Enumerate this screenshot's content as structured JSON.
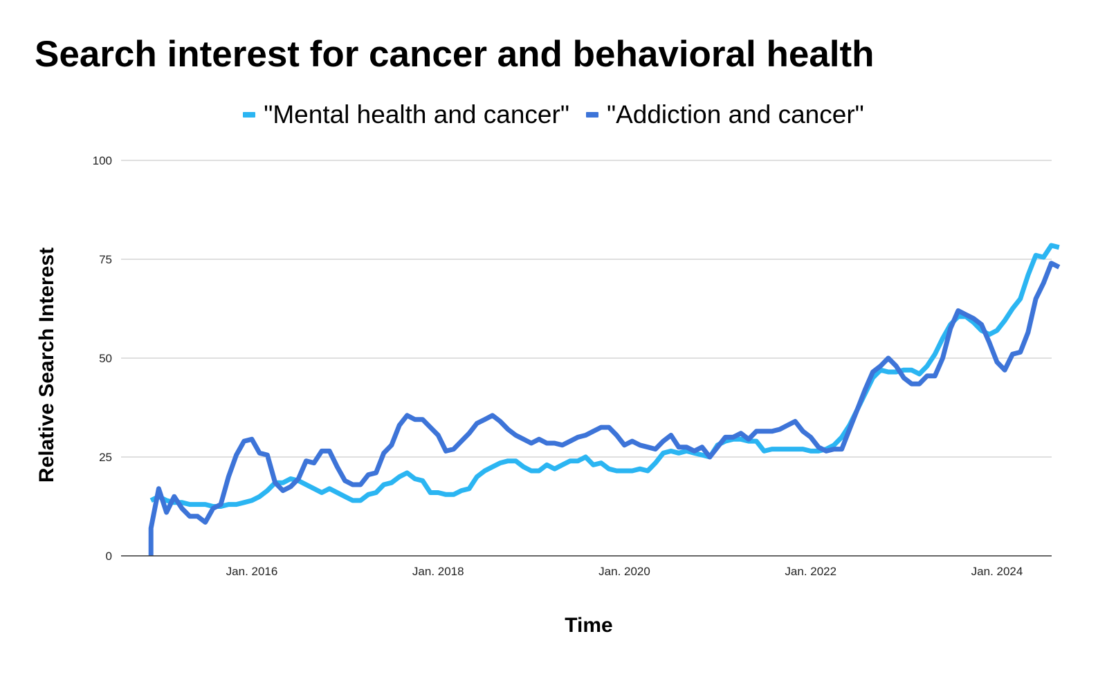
{
  "chart_data": {
    "type": "line",
    "title": "Search interest for cancer and behavioral health",
    "xlabel": "Time",
    "ylabel": "Relative Search Interest",
    "ylim": [
      0,
      100
    ],
    "y_ticks": [
      "0",
      "25",
      "50",
      "75",
      "100"
    ],
    "x_ticks": [
      {
        "label": "Jan. 2016",
        "date": "2016-01"
      },
      {
        "label": "Jan. 2018",
        "date": "2018-01"
      },
      {
        "label": "Jan. 2020",
        "date": "2020-01"
      },
      {
        "label": "Jan. 2022",
        "date": "2022-01"
      },
      {
        "label": "Jan. 2024",
        "date": "2024-01"
      }
    ],
    "x_range": [
      "2014-12",
      "2025-01"
    ],
    "grid": true,
    "legend_position": "top",
    "colors": {
      "series1": "#2bb5f2",
      "series2": "#3d74d8",
      "grid": "#cccccc",
      "axis": "#333333"
    },
    "series": [
      {
        "name": "\"Mental health and cancer\"",
        "points": [
          [
            "2014-12",
            14
          ],
          [
            "2015-01",
            15
          ],
          [
            "2015-02",
            14
          ],
          [
            "2015-03",
            13.5
          ],
          [
            "2015-04",
            13.5
          ],
          [
            "2015-05",
            13
          ],
          [
            "2015-06",
            13
          ],
          [
            "2015-07",
            13
          ],
          [
            "2015-08",
            12.5
          ],
          [
            "2015-09",
            12.5
          ],
          [
            "2015-10",
            13
          ],
          [
            "2015-11",
            13
          ],
          [
            "2015-12",
            13.5
          ],
          [
            "2016-01",
            14
          ],
          [
            "2016-02",
            15
          ],
          [
            "2016-03",
            16.5
          ],
          [
            "2016-04",
            18.5
          ],
          [
            "2016-05",
            18.5
          ],
          [
            "2016-06",
            19.5
          ],
          [
            "2016-07",
            19
          ],
          [
            "2016-08",
            18
          ],
          [
            "2016-09",
            17
          ],
          [
            "2016-10",
            16
          ],
          [
            "2016-11",
            17
          ],
          [
            "2016-12",
            16
          ],
          [
            "2017-01",
            15
          ],
          [
            "2017-02",
            14
          ],
          [
            "2017-03",
            14
          ],
          [
            "2017-04",
            15.5
          ],
          [
            "2017-05",
            16
          ],
          [
            "2017-06",
            18
          ],
          [
            "2017-07",
            18.5
          ],
          [
            "2017-08",
            20
          ],
          [
            "2017-09",
            21
          ],
          [
            "2017-10",
            19.5
          ],
          [
            "2017-11",
            19
          ],
          [
            "2017-12",
            16
          ],
          [
            "2018-01",
            16
          ],
          [
            "2018-02",
            15.5
          ],
          [
            "2018-03",
            15.5
          ],
          [
            "2018-04",
            16.5
          ],
          [
            "2018-05",
            17
          ],
          [
            "2018-06",
            20
          ],
          [
            "2018-07",
            21.5
          ],
          [
            "2018-08",
            22.5
          ],
          [
            "2018-09",
            23.5
          ],
          [
            "2018-10",
            24
          ],
          [
            "2018-11",
            24
          ],
          [
            "2018-12",
            22.5
          ],
          [
            "2019-01",
            21.5
          ],
          [
            "2019-02",
            21.5
          ],
          [
            "2019-03",
            23
          ],
          [
            "2019-04",
            22
          ],
          [
            "2019-05",
            23
          ],
          [
            "2019-06",
            24
          ],
          [
            "2019-07",
            24
          ],
          [
            "2019-08",
            25
          ],
          [
            "2019-09",
            23
          ],
          [
            "2019-10",
            23.5
          ],
          [
            "2019-11",
            22
          ],
          [
            "2019-12",
            21.5
          ],
          [
            "2020-01",
            21.5
          ],
          [
            "2020-02",
            21.5
          ],
          [
            "2020-03",
            22
          ],
          [
            "2020-04",
            21.5
          ],
          [
            "2020-05",
            23.5
          ],
          [
            "2020-06",
            26
          ],
          [
            "2020-07",
            26.5
          ],
          [
            "2020-08",
            26
          ],
          [
            "2020-09",
            26.5
          ],
          [
            "2020-10",
            26
          ],
          [
            "2020-11",
            25.5
          ],
          [
            "2020-12",
            25
          ],
          [
            "2021-01",
            28
          ],
          [
            "2021-02",
            29
          ],
          [
            "2021-03",
            29.5
          ],
          [
            "2021-04",
            29.5
          ],
          [
            "2021-05",
            29
          ],
          [
            "2021-06",
            29
          ],
          [
            "2021-07",
            26.5
          ],
          [
            "2021-08",
            27
          ],
          [
            "2021-09",
            27
          ],
          [
            "2021-10",
            27
          ],
          [
            "2021-11",
            27
          ],
          [
            "2021-12",
            27
          ],
          [
            "2022-01",
            26.5
          ],
          [
            "2022-02",
            26.5
          ],
          [
            "2022-03",
            27
          ],
          [
            "2022-04",
            28
          ],
          [
            "2022-05",
            30
          ],
          [
            "2022-06",
            33
          ],
          [
            "2022-07",
            37
          ],
          [
            "2022-08",
            41
          ],
          [
            "2022-09",
            45
          ],
          [
            "2022-10",
            47
          ],
          [
            "2022-11",
            46.5
          ],
          [
            "2022-12",
            46.5
          ],
          [
            "2023-01",
            47
          ],
          [
            "2023-02",
            47
          ],
          [
            "2023-03",
            46
          ],
          [
            "2023-04",
            48
          ],
          [
            "2023-05",
            51
          ],
          [
            "2023-06",
            55
          ],
          [
            "2023-07",
            58.5
          ],
          [
            "2023-08",
            60.5
          ],
          [
            "2023-09",
            60.5
          ],
          [
            "2023-10",
            59
          ],
          [
            "2023-11",
            57
          ],
          [
            "2023-12",
            56
          ],
          [
            "2024-01",
            57
          ],
          [
            "2024-02",
            59.5
          ],
          [
            "2024-03",
            62.5
          ],
          [
            "2024-04",
            65
          ],
          [
            "2024-05",
            71
          ],
          [
            "2024-06",
            76
          ],
          [
            "2024-07",
            75.5
          ],
          [
            "2024-08",
            78.5
          ],
          [
            "2024-09",
            78
          ]
        ]
      },
      {
        "name": "\"Addiction and cancer\"",
        "points": [
          [
            "2014-12",
            0
          ],
          [
            "2014-12",
            7
          ],
          [
            "2015-01",
            17
          ],
          [
            "2015-02",
            11
          ],
          [
            "2015-03",
            15
          ],
          [
            "2015-04",
            12
          ],
          [
            "2015-05",
            10
          ],
          [
            "2015-06",
            10
          ],
          [
            "2015-07",
            8.5
          ],
          [
            "2015-08",
            12
          ],
          [
            "2015-09",
            13
          ],
          [
            "2015-10",
            20
          ],
          [
            "2015-11",
            25.5
          ],
          [
            "2015-12",
            29
          ],
          [
            "2016-01",
            29.5
          ],
          [
            "2016-02",
            26
          ],
          [
            "2016-03",
            25.5
          ],
          [
            "2016-04",
            18.5
          ],
          [
            "2016-05",
            16.5
          ],
          [
            "2016-06",
            17.5
          ],
          [
            "2016-07",
            19.5
          ],
          [
            "2016-08",
            24
          ],
          [
            "2016-09",
            23.5
          ],
          [
            "2016-10",
            26.5
          ],
          [
            "2016-11",
            26.5
          ],
          [
            "2016-12",
            22.5
          ],
          [
            "2017-01",
            19
          ],
          [
            "2017-02",
            18
          ],
          [
            "2017-03",
            18
          ],
          [
            "2017-04",
            20.5
          ],
          [
            "2017-05",
            21
          ],
          [
            "2017-06",
            26
          ],
          [
            "2017-07",
            28
          ],
          [
            "2017-08",
            33
          ],
          [
            "2017-09",
            35.5
          ],
          [
            "2017-10",
            34.5
          ],
          [
            "2017-11",
            34.5
          ],
          [
            "2017-12",
            32.5
          ],
          [
            "2018-01",
            30.5
          ],
          [
            "2018-02",
            26.5
          ],
          [
            "2018-03",
            27
          ],
          [
            "2018-04",
            29
          ],
          [
            "2018-05",
            31
          ],
          [
            "2018-06",
            33.5
          ],
          [
            "2018-07",
            34.5
          ],
          [
            "2018-08",
            35.5
          ],
          [
            "2018-09",
            34
          ],
          [
            "2018-10",
            32
          ],
          [
            "2018-11",
            30.5
          ],
          [
            "2018-12",
            29.5
          ],
          [
            "2019-01",
            28.5
          ],
          [
            "2019-02",
            29.5
          ],
          [
            "2019-03",
            28.5
          ],
          [
            "2019-04",
            28.5
          ],
          [
            "2019-05",
            28
          ],
          [
            "2019-06",
            29
          ],
          [
            "2019-07",
            30
          ],
          [
            "2019-08",
            30.5
          ],
          [
            "2019-09",
            31.5
          ],
          [
            "2019-10",
            32.5
          ],
          [
            "2019-11",
            32.5
          ],
          [
            "2019-12",
            30.5
          ],
          [
            "2020-01",
            28
          ],
          [
            "2020-02",
            29
          ],
          [
            "2020-03",
            28
          ],
          [
            "2020-04",
            27.5
          ],
          [
            "2020-05",
            27
          ],
          [
            "2020-06",
            29
          ],
          [
            "2020-07",
            30.5
          ],
          [
            "2020-08",
            27.5
          ],
          [
            "2020-09",
            27.5
          ],
          [
            "2020-10",
            26.5
          ],
          [
            "2020-11",
            27.5
          ],
          [
            "2020-12",
            25
          ],
          [
            "2021-01",
            27.5
          ],
          [
            "2021-02",
            30
          ],
          [
            "2021-03",
            30
          ],
          [
            "2021-04",
            31
          ],
          [
            "2021-05",
            29.5
          ],
          [
            "2021-06",
            31.5
          ],
          [
            "2021-07",
            31.5
          ],
          [
            "2021-08",
            31.5
          ],
          [
            "2021-09",
            32
          ],
          [
            "2021-10",
            33
          ],
          [
            "2021-11",
            34
          ],
          [
            "2021-12",
            31.5
          ],
          [
            "2022-01",
            30
          ],
          [
            "2022-02",
            27.5
          ],
          [
            "2022-03",
            26.5
          ],
          [
            "2022-04",
            27
          ],
          [
            "2022-05",
            27
          ],
          [
            "2022-06",
            32
          ],
          [
            "2022-07",
            37
          ],
          [
            "2022-08",
            42
          ],
          [
            "2022-09",
            46.5
          ],
          [
            "2022-10",
            48
          ],
          [
            "2022-11",
            50
          ],
          [
            "2022-12",
            48
          ],
          [
            "2023-01",
            45
          ],
          [
            "2023-02",
            43.5
          ],
          [
            "2023-03",
            43.5
          ],
          [
            "2023-04",
            45.5
          ],
          [
            "2023-05",
            45.5
          ],
          [
            "2023-06",
            50
          ],
          [
            "2023-07",
            57.5
          ],
          [
            "2023-08",
            62
          ],
          [
            "2023-09",
            61
          ],
          [
            "2023-10",
            60
          ],
          [
            "2023-11",
            58.5
          ],
          [
            "2023-12",
            54
          ],
          [
            "2024-01",
            49
          ],
          [
            "2024-02",
            47
          ],
          [
            "2024-03",
            51
          ],
          [
            "2024-04",
            51.5
          ],
          [
            "2024-05",
            56.5
          ],
          [
            "2024-06",
            65
          ],
          [
            "2024-07",
            69
          ],
          [
            "2024-08",
            74
          ],
          [
            "2024-09",
            73
          ]
        ]
      }
    ]
  }
}
